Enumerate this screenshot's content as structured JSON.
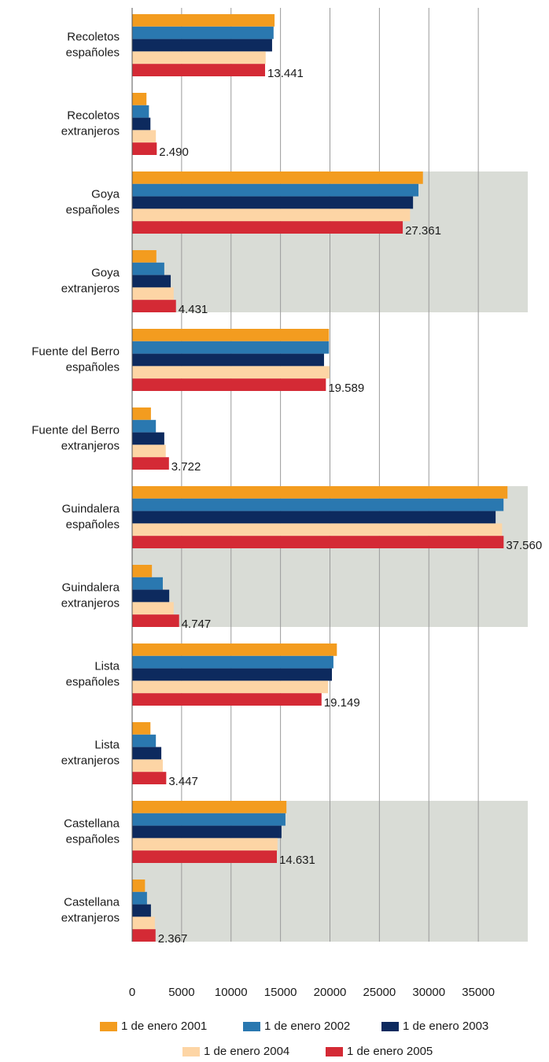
{
  "chart_data": {
    "type": "hbar",
    "categories": [
      [
        "Recoletos",
        "españoles"
      ],
      [
        "Recoletos",
        "extranjeros"
      ],
      [
        "Goya",
        "españoles"
      ],
      [
        "Goya",
        "extranjeros"
      ],
      [
        "Fuente del Berro",
        "españoles"
      ],
      [
        "Fuente del Berro",
        "extranjeros"
      ],
      [
        "Guindalera",
        "españoles"
      ],
      [
        "Guindalera",
        "extranjeros"
      ],
      [
        "Lista",
        "españoles"
      ],
      [
        "Lista",
        "extranjeros"
      ],
      [
        "Castellana",
        "españoles"
      ],
      [
        "Castellana",
        "extranjeros"
      ]
    ],
    "series": [
      {
        "name": "1 de enero 2001",
        "color": "#f39c1f",
        "values": [
          14400,
          1450,
          29400,
          2450,
          19900,
          1900,
          37950,
          2000,
          20700,
          1850,
          15600,
          1300
        ]
      },
      {
        "name": "1 de enero 2002",
        "color": "#2a78b0",
        "values": [
          14300,
          1700,
          28950,
          3250,
          19900,
          2400,
          37550,
          3100,
          20350,
          2400,
          15500,
          1500
        ]
      },
      {
        "name": "1 de enero 2003",
        "color": "#0d2a5e",
        "values": [
          14150,
          1850,
          28400,
          3900,
          19400,
          3250,
          36750,
          3750,
          20200,
          2950,
          15100,
          1900
        ]
      },
      {
        "name": "1 de enero 2004",
        "color": "#fdd5a5",
        "values": [
          13500,
          2400,
          28100,
          4200,
          19950,
          3400,
          37400,
          4200,
          19800,
          3100,
          14700,
          2300
        ]
      },
      {
        "name": "1 de enero 2005",
        "color": "#d42a35",
        "values": [
          13441,
          2490,
          27361,
          4431,
          19589,
          3722,
          37560,
          4747,
          19149,
          3447,
          14631,
          2367
        ],
        "value_labels": [
          "13.441",
          "2.490",
          "27.361",
          "4.431",
          "19.589",
          "3.722",
          "37.560",
          "4.747",
          "19.149",
          "3.447",
          "14.631",
          "2.367"
        ]
      }
    ],
    "xlim": [
      0,
      40000
    ],
    "xticks": [
      0,
      5000,
      10000,
      15000,
      20000,
      25000,
      30000,
      35000
    ],
    "grid": true
  }
}
